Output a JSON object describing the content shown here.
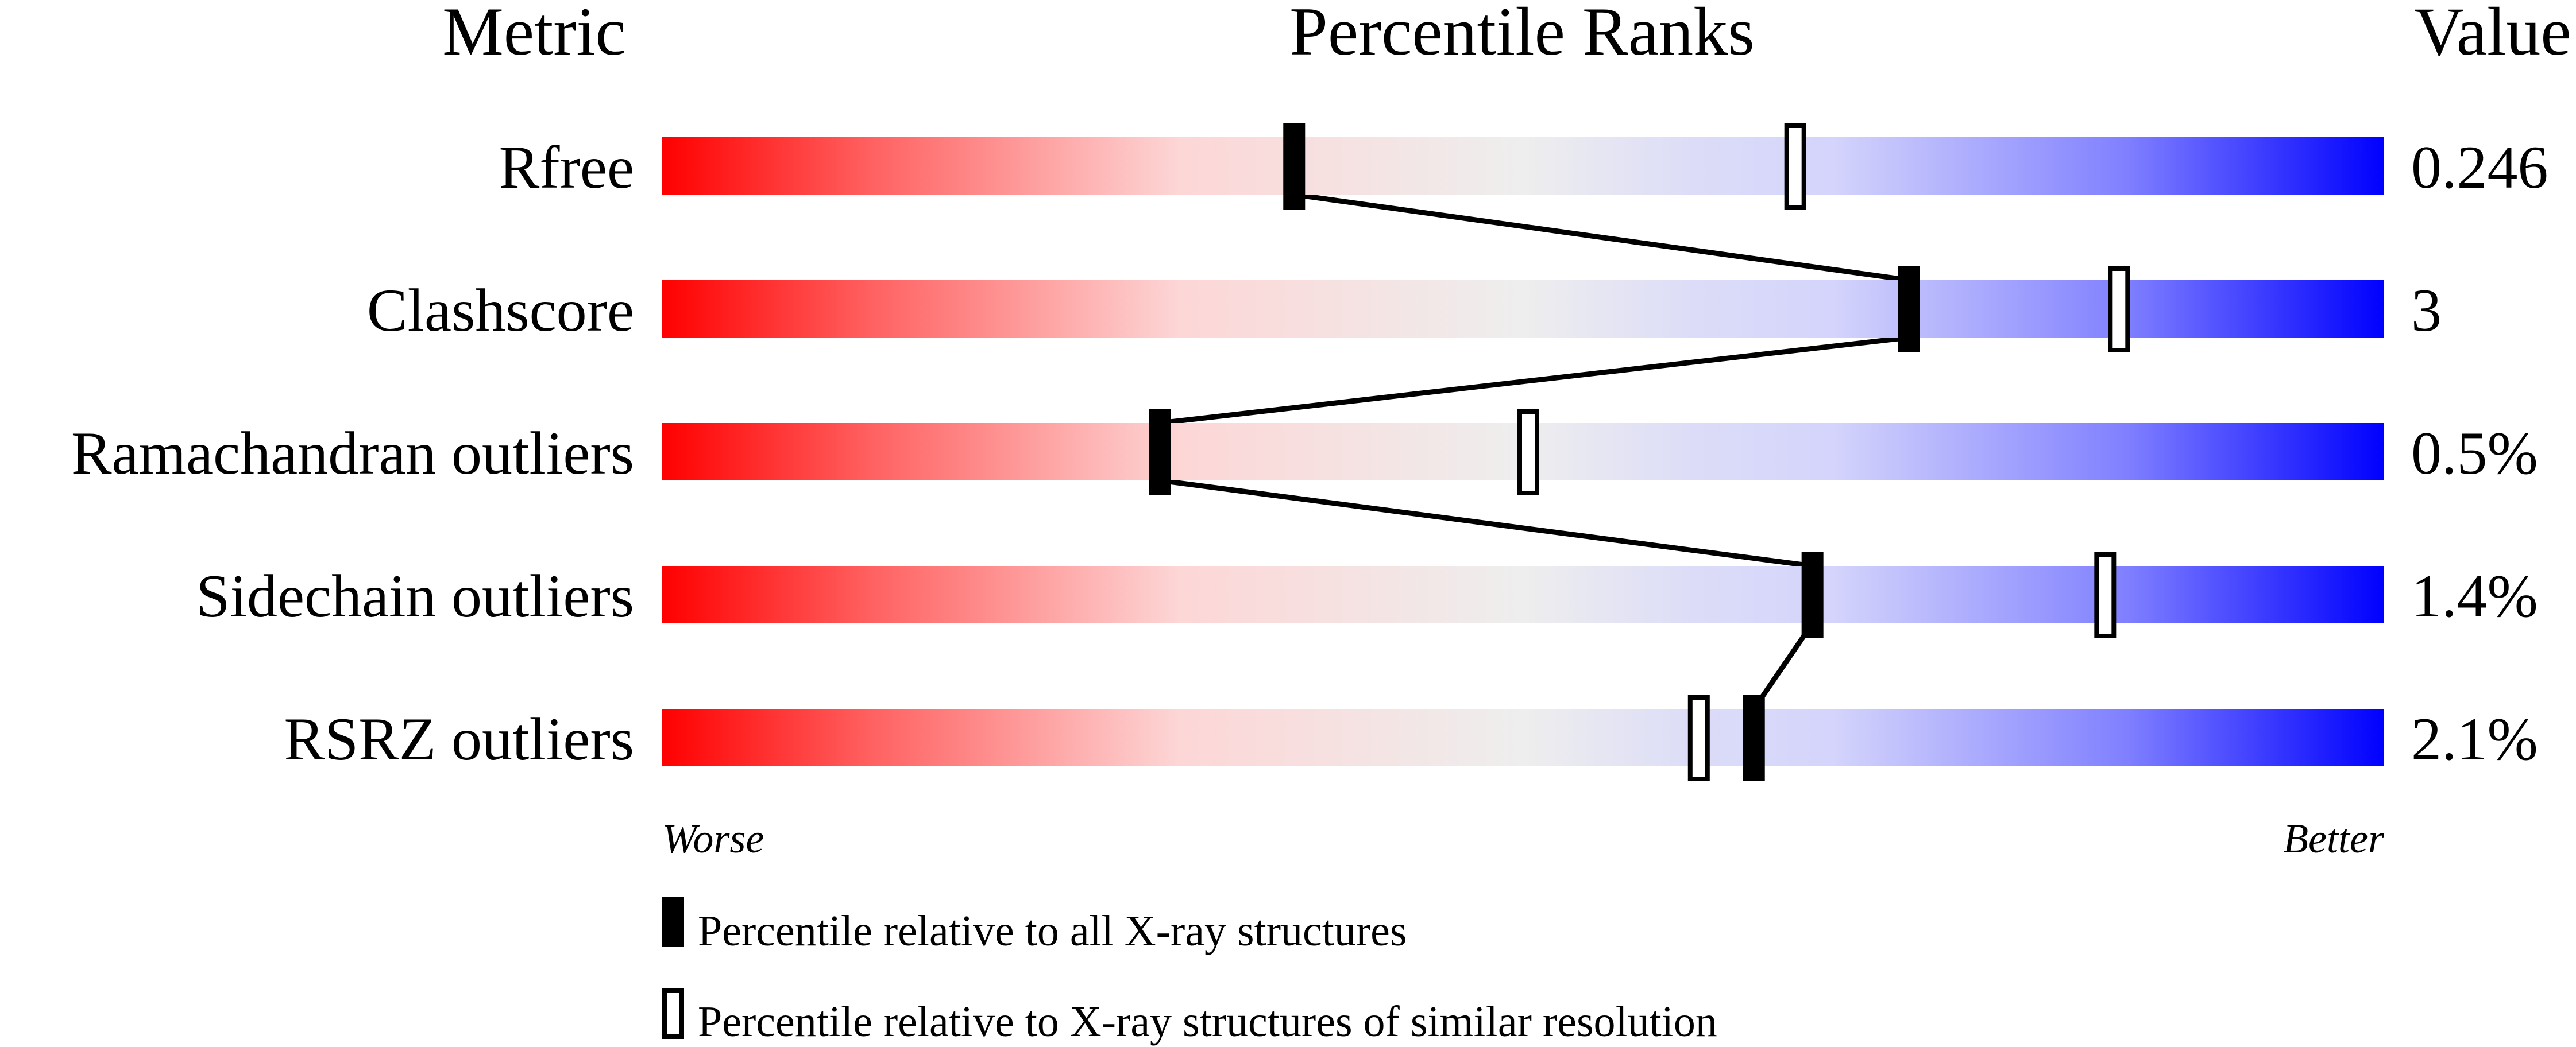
{
  "chart_data": {
    "type": "percentile-slider",
    "headers": {
      "metric": "Metric",
      "ranks": "Percentile Ranks",
      "value": "Value"
    },
    "xlim": [
      0,
      100
    ],
    "axis_labels": {
      "left": "Worse",
      "right": "Better"
    },
    "metrics": [
      {
        "name": "Rfree",
        "value": "0.246",
        "percentile_all": 36.7,
        "percentile_similar": 65.8
      },
      {
        "name": "Clashscore",
        "value": "3",
        "percentile_all": 72.4,
        "percentile_similar": 84.6
      },
      {
        "name": "Ramachandran outliers",
        "value": "0.5%",
        "percentile_all": 28.9,
        "percentile_similar": 50.3
      },
      {
        "name": "Sidechain outliers",
        "value": "1.4%",
        "percentile_all": 66.8,
        "percentile_similar": 83.8
      },
      {
        "name": "RSRZ outliers",
        "value": "2.1%",
        "percentile_all": 63.4,
        "percentile_similar": 60.2
      }
    ],
    "legend": {
      "all": "Percentile relative to all X-ray structures",
      "similar": "Percentile relative to X-ray structures of similar resolution"
    },
    "colors": {
      "worse": "#ff0000",
      "mid": "#eeeeee",
      "better": "#0000ff",
      "marker": "#000000"
    }
  }
}
